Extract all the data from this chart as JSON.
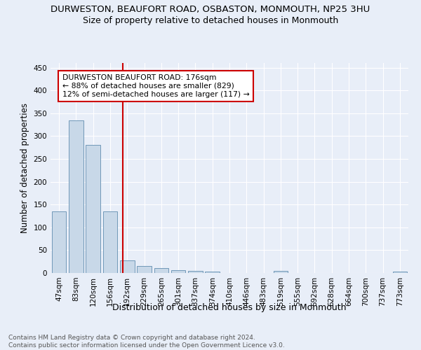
{
  "title": "DURWESTON, BEAUFORT ROAD, OSBASTON, MONMOUTH, NP25 3HU",
  "subtitle": "Size of property relative to detached houses in Monmouth",
  "xlabel": "Distribution of detached houses by size in Monmouth",
  "ylabel": "Number of detached properties",
  "footer_line1": "Contains HM Land Registry data © Crown copyright and database right 2024.",
  "footer_line2": "Contains public sector information licensed under the Open Government Licence v3.0.",
  "categories": [
    "47sqm",
    "83sqm",
    "120sqm",
    "156sqm",
    "192sqm",
    "229sqm",
    "265sqm",
    "301sqm",
    "337sqm",
    "374sqm",
    "410sqm",
    "446sqm",
    "483sqm",
    "519sqm",
    "555sqm",
    "592sqm",
    "628sqm",
    "664sqm",
    "700sqm",
    "737sqm",
    "773sqm"
  ],
  "values": [
    135,
    335,
    280,
    135,
    28,
    16,
    11,
    6,
    5,
    3,
    0,
    0,
    0,
    4,
    0,
    0,
    0,
    0,
    0,
    0,
    3
  ],
  "bar_color": "#c8d8e8",
  "bar_edge_color": "#7098b8",
  "vline_x": 3.75,
  "vline_color": "#cc0000",
  "annotation_line1": "DURWESTON BEAUFORT ROAD: 176sqm",
  "annotation_line2": "← 88% of detached houses are smaller (829)",
  "annotation_line3": "12% of semi-detached houses are larger (117) →",
  "annotation_box_color": "#ffffff",
  "annotation_box_edge": "#cc0000",
  "ylim": [
    0,
    460
  ],
  "yticks": [
    0,
    50,
    100,
    150,
    200,
    250,
    300,
    350,
    400,
    450
  ],
  "background_color": "#e8eef8",
  "plot_background_color": "#e8eef8",
  "grid_color": "#ffffff",
  "title_fontsize": 9.5,
  "subtitle_fontsize": 9,
  "xlabel_fontsize": 9,
  "ylabel_fontsize": 8.5,
  "tick_fontsize": 7.5,
  "footer_fontsize": 6.5
}
